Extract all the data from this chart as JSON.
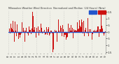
{
  "title": "Milwaukee Weather Wind Direction  Normalized and Median  (24 Hours) (New)",
  "n_bars": 220,
  "bar_color": "#cc1111",
  "median_color": "#2255cc",
  "median_value": 0.0,
  "ylim": [
    -1.6,
    1.6
  ],
  "ytick_positions": [
    1.5,
    1.0,
    0.5,
    0.0,
    -0.5,
    -1.0,
    -1.5
  ],
  "ytick_labels": [
    "1.5",
    "1",
    ".5",
    "0",
    ".5",
    "1",
    "1.5"
  ],
  "background_color": "#f0f0e8",
  "plot_bg_color": "#f0f0e8",
  "grid_color": "#aaaaaa",
  "legend_blue_color": "#2255cc",
  "legend_red_color": "#cc1111",
  "seed": 42,
  "n_gridlines": 8
}
